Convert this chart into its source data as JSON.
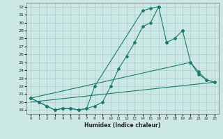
{
  "bg_color": "#cce8e4",
  "grid_color": "#aaccca",
  "line_color": "#1a7a6e",
  "xlabel": "Humidex (Indice chaleur)",
  "xlim": [
    -0.5,
    23.5
  ],
  "ylim": [
    18.5,
    32.5
  ],
  "yticks": [
    19,
    20,
    21,
    22,
    23,
    24,
    25,
    26,
    27,
    28,
    29,
    30,
    31,
    32
  ],
  "xticks": [
    0,
    1,
    2,
    3,
    4,
    5,
    6,
    7,
    8,
    9,
    10,
    11,
    12,
    13,
    14,
    15,
    16,
    17,
    18,
    19,
    20,
    21,
    22,
    23
  ],
  "line1_x": [
    0,
    1,
    2,
    3,
    4,
    5,
    6,
    7,
    8,
    9,
    10,
    11,
    12,
    13,
    14,
    15,
    16
  ],
  "line1_y": [
    20.5,
    20.0,
    19.5,
    19.0,
    19.2,
    19.2,
    19.0,
    19.2,
    19.5,
    20.0,
    22.0,
    24.2,
    25.8,
    27.5,
    29.5,
    30.0,
    32.0
  ],
  "line2_segs": [
    {
      "x": [
        0,
        1,
        2,
        3,
        4,
        5,
        6,
        7,
        8
      ],
      "y": [
        20.5,
        20.0,
        19.5,
        19.0,
        19.2,
        19.2,
        19.0,
        19.2,
        22.0
      ]
    },
    {
      "x": [
        8,
        9,
        10,
        11,
        12,
        13,
        14,
        15,
        16,
        17
      ],
      "y": [
        22.0,
        null,
        null,
        null,
        null,
        null,
        31.5,
        31.8,
        32.0,
        27.5
      ]
    },
    {
      "x": [
        17,
        18,
        19
      ],
      "y": [
        27.5,
        28.0,
        29.0
      ]
    },
    {
      "x": [
        19,
        20,
        21,
        22,
        23
      ],
      "y": [
        29.0,
        25.0,
        23.8,
        22.8,
        22.5
      ]
    }
  ],
  "line3_x": [
    0,
    20,
    21,
    22,
    23
  ],
  "line3_y": [
    20.5,
    25.0,
    23.5,
    22.8,
    22.5
  ],
  "line4_x": [
    0,
    23
  ],
  "line4_y": [
    20.0,
    22.5
  ]
}
